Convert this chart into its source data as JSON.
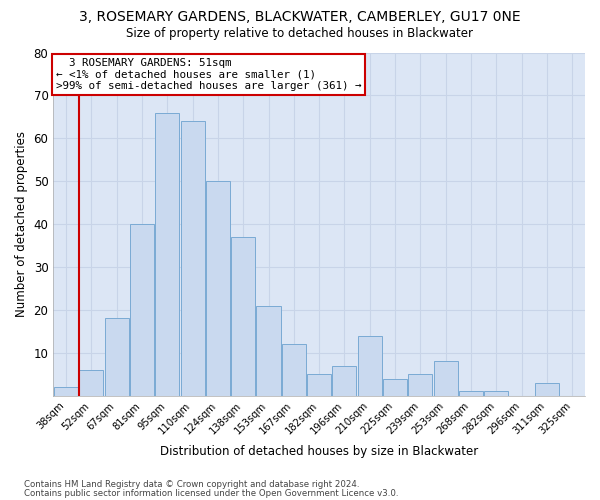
{
  "title": "3, ROSEMARY GARDENS, BLACKWATER, CAMBERLEY, GU17 0NE",
  "subtitle": "Size of property relative to detached houses in Blackwater",
  "xlabel": "Distribution of detached houses by size in Blackwater",
  "ylabel": "Number of detached properties",
  "categories": [
    "38sqm",
    "52sqm",
    "67sqm",
    "81sqm",
    "95sqm",
    "110sqm",
    "124sqm",
    "138sqm",
    "153sqm",
    "167sqm",
    "182sqm",
    "196sqm",
    "210sqm",
    "225sqm",
    "239sqm",
    "253sqm",
    "268sqm",
    "282sqm",
    "296sqm",
    "311sqm",
    "325sqm"
  ],
  "values": [
    2,
    6,
    18,
    40,
    66,
    64,
    50,
    37,
    21,
    12,
    5,
    7,
    14,
    4,
    5,
    8,
    1,
    1,
    0,
    3,
    0
  ],
  "bar_color": "#c9d9ef",
  "bar_edge_color": "#7aaad4",
  "annotation_title": "3 ROSEMARY GARDENS: 51sqm",
  "annotation_line1": "← <1% of detached houses are smaller (1)",
  "annotation_line2": ">99% of semi-detached houses are larger (361) →",
  "annotation_box_color": "#ffffff",
  "annotation_box_edge": "#cc0000",
  "red_line_x": 0.5,
  "ylim": [
    0,
    80
  ],
  "yticks": [
    0,
    10,
    20,
    30,
    40,
    50,
    60,
    70,
    80
  ],
  "grid_color": "#c8d4e8",
  "background_color": "#dce6f5",
  "figure_color": "#ffffff",
  "footer_line1": "Contains HM Land Registry data © Crown copyright and database right 2024.",
  "footer_line2": "Contains public sector information licensed under the Open Government Licence v3.0."
}
